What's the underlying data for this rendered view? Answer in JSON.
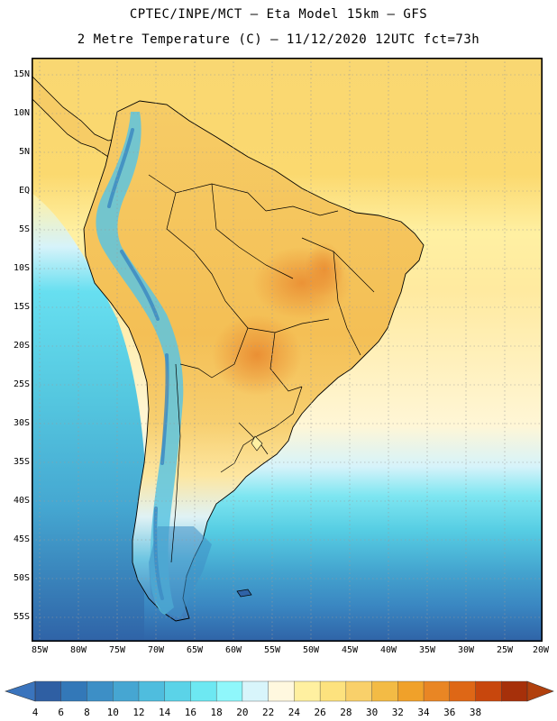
{
  "header": {
    "line1": "CPTEC/INPE/MCT –  Eta Model 15km – GFS",
    "line2": "2 Metre Temperature (C) – 11/12/2020 12UTC fct=73h"
  },
  "axes": {
    "lat_labels": [
      "15N",
      "10N",
      "5N",
      "EQ",
      "5S",
      "10S",
      "15S",
      "20S",
      "25S",
      "30S",
      "35S",
      "40S",
      "45S",
      "50S",
      "55S"
    ],
    "lon_labels": [
      "85W",
      "80W",
      "75W",
      "70W",
      "65W",
      "60W",
      "55W",
      "50W",
      "45W",
      "40W",
      "35W",
      "30W",
      "25W",
      "20W"
    ]
  },
  "colorbar": {
    "labels": [
      "4",
      "6",
      "8",
      "10",
      "12",
      "14",
      "16",
      "18",
      "20",
      "22",
      "24",
      "26",
      "28",
      "30",
      "32",
      "34",
      "36",
      "38"
    ],
    "colors": [
      "#2f5fa3",
      "#3378b8",
      "#3d8fc6",
      "#46a6d2",
      "#4fbdde",
      "#5bd3e8",
      "#6de8f2",
      "#8ff7fb",
      "#d8f5fb",
      "#fff8df",
      "#fff0a0",
      "#fde27e",
      "#f9d06a",
      "#f3bb45",
      "#f0a12a",
      "#e98624",
      "#de6716",
      "#c8470d",
      "#a6300a"
    ],
    "low_arrow_color": "#3a74bd",
    "high_arrow_color": "#b1400d"
  }
}
